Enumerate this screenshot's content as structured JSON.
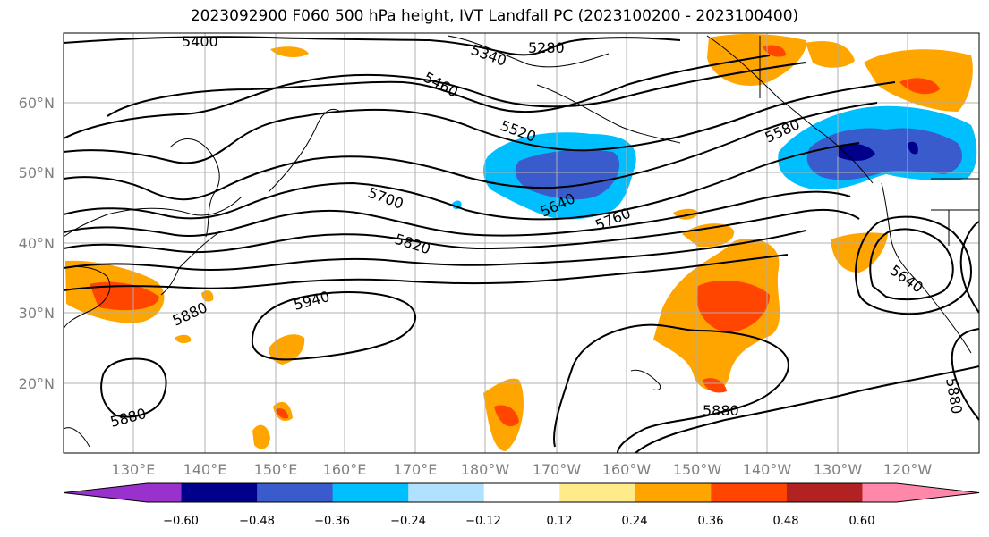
{
  "title": "2023092900 F060 500 hPa height, IVT Landfall PC (2023100200 - 2023100400)",
  "lat_ticks": [
    "60°N",
    "50°N",
    "40°N",
    "30°N",
    "20°N"
  ],
  "lon_ticks": [
    "130°E",
    "140°E",
    "150°E",
    "160°E",
    "170°E",
    "180°W",
    "170°W",
    "160°W",
    "150°W",
    "140°W",
    "130°W",
    "120°W"
  ],
  "contour_labels": [
    "5400",
    "5280",
    "5340",
    "5460",
    "5520",
    "5580",
    "5700",
    "5640",
    "5760",
    "5820",
    "5640",
    "5940",
    "5880",
    "5880",
    "5880",
    "5880"
  ],
  "colorbar": {
    "ticks": [
      "−0.60",
      "−0.48",
      "−0.36",
      "−0.24",
      "−0.12",
      "0.12",
      "0.24",
      "0.36",
      "0.48",
      "0.60"
    ],
    "colors": [
      "#9932CC",
      "#00008B",
      "#3A5BCC",
      "#00BFFF",
      "#B0E2FF",
      "#FFFFFF",
      "#FFEB8A",
      "#FFA500",
      "#FF4500",
      "#B22222",
      "#FF88AA"
    ]
  }
}
